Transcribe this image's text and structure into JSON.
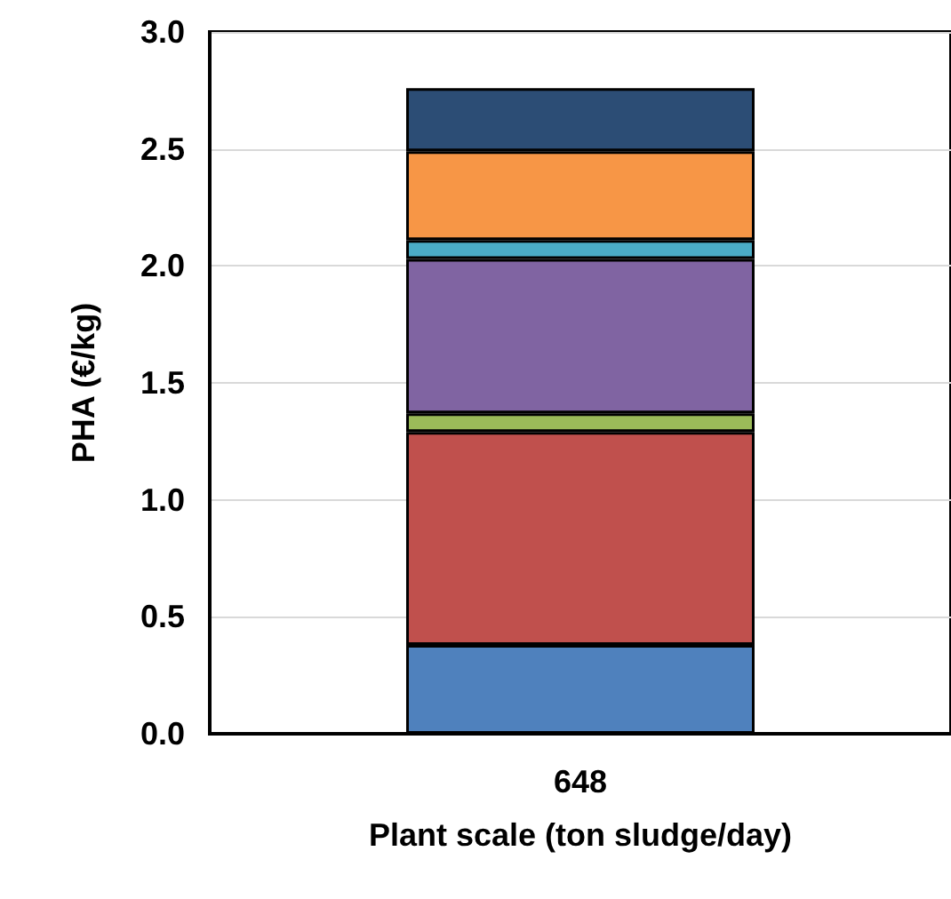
{
  "chart_data": {
    "type": "bar",
    "stacked": true,
    "xlabel": "Plant scale (ton sludge/day)",
    "ylabel": "PHA (€/kg)",
    "categories": [
      "648"
    ],
    "series": [
      {
        "color": "#4f81bd",
        "values": [
          0.38
        ]
      },
      {
        "color": "#c0504d",
        "values": [
          0.91
        ]
      },
      {
        "color": "#9bbb59",
        "values": [
          0.08
        ]
      },
      {
        "color": "#8064a2",
        "values": [
          0.66
        ]
      },
      {
        "color": "#4bacc6",
        "values": [
          0.08
        ]
      },
      {
        "color": "#f79646",
        "values": [
          0.38
        ]
      },
      {
        "color": "#2c4d75",
        "values": [
          0.27
        ]
      }
    ],
    "ylim": [
      0,
      3
    ],
    "yticks": [
      {
        "value": 0,
        "label": "0.0"
      },
      0.5,
      {
        "value": 1,
        "label": "1.0"
      },
      1.5,
      {
        "value": 2,
        "label": "2.0"
      },
      2.5,
      {
        "value": 3,
        "label": "3.0"
      }
    ],
    "grid": "y"
  }
}
